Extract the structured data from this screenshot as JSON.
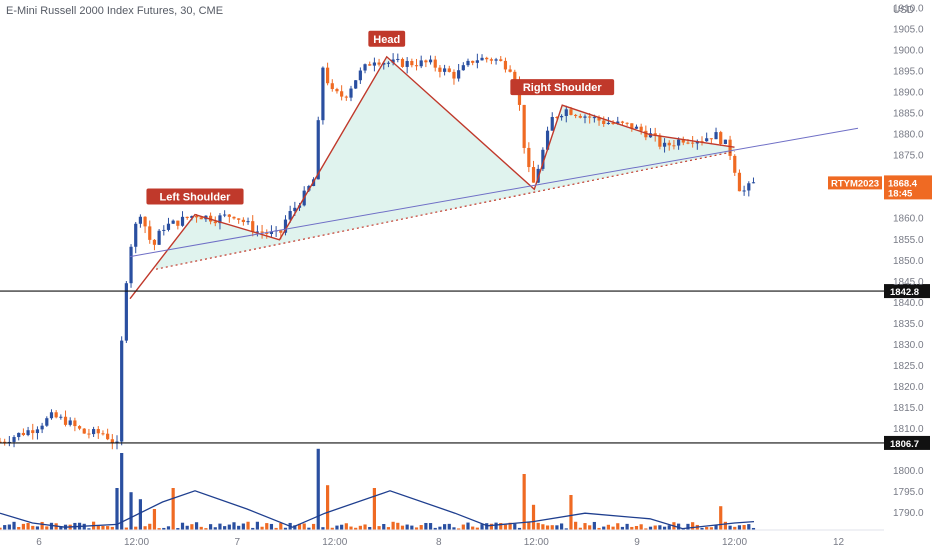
{
  "header": {
    "title": "E-Mini Russell 2000 Index Futures, 30, CME",
    "currency": "USD"
  },
  "colors": {
    "up": "#2a4fa0",
    "down": "#ef6a23",
    "pattern_line": "#c0392b",
    "neckline": "#6f6fc6",
    "fill": "#d8f0ea",
    "level_line": "#111111",
    "volume_ma": "#1f3f8f",
    "last_price_tag": "#ef6a23"
  },
  "chart_data": {
    "type": "candlestick",
    "y_axis": {
      "range": [
        1786,
        1912
      ],
      "ticks": [
        1790,
        1795,
        1800,
        1805,
        1810,
        1815,
        1820,
        1825,
        1830,
        1835,
        1840,
        1845,
        1850,
        1855,
        1860,
        1865,
        1870,
        1875,
        1880,
        1885,
        1890,
        1895,
        1900,
        1905,
        1910
      ]
    },
    "x_axis": {
      "ticks": [
        {
          "label": "6",
          "t": 0.06
        },
        {
          "label": "12:00",
          "t": 0.21
        },
        {
          "label": "7",
          "t": 0.365
        },
        {
          "label": "12:00",
          "t": 0.515
        },
        {
          "label": "8",
          "t": 0.675
        },
        {
          "label": "12:00",
          "t": 0.825
        },
        {
          "label": "9",
          "t": 0.98
        },
        {
          "label": "12:00",
          "t": 1.13
        },
        {
          "label": "12",
          "t": 1.29
        }
      ]
    },
    "candle_keypoints": [
      [
        0.0,
        1807
      ],
      [
        0.05,
        1810
      ],
      [
        0.08,
        1813
      ],
      [
        0.1,
        1812
      ],
      [
        0.13,
        1809
      ],
      [
        0.16,
        1809
      ],
      [
        0.18,
        1806
      ],
      [
        0.19,
        1840
      ],
      [
        0.2,
        1853
      ],
      [
        0.215,
        1862
      ],
      [
        0.235,
        1853
      ],
      [
        0.25,
        1858
      ],
      [
        0.27,
        1859
      ],
      [
        0.3,
        1861
      ],
      [
        0.33,
        1860
      ],
      [
        0.36,
        1861
      ],
      [
        0.395,
        1857
      ],
      [
        0.43,
        1856
      ],
      [
        0.44,
        1860
      ],
      [
        0.47,
        1866
      ],
      [
        0.485,
        1870
      ],
      [
        0.495,
        1897
      ],
      [
        0.51,
        1890
      ],
      [
        0.53,
        1889
      ],
      [
        0.55,
        1894
      ],
      [
        0.575,
        1898
      ],
      [
        0.6,
        1897
      ],
      [
        0.635,
        1897
      ],
      [
        0.66,
        1897
      ],
      [
        0.7,
        1894
      ],
      [
        0.73,
        1898
      ],
      [
        0.76,
        1898
      ],
      [
        0.785,
        1896
      ],
      [
        0.795,
        1892
      ],
      [
        0.81,
        1873
      ],
      [
        0.82,
        1868
      ],
      [
        0.835,
        1876
      ],
      [
        0.85,
        1884
      ],
      [
        0.87,
        1886
      ],
      [
        0.89,
        1885
      ],
      [
        0.93,
        1883
      ],
      [
        0.97,
        1882
      ],
      [
        1.0,
        1880
      ],
      [
        1.02,
        1877
      ],
      [
        1.05,
        1879
      ],
      [
        1.08,
        1879
      ],
      [
        1.1,
        1880
      ],
      [
        1.115,
        1878
      ],
      [
        1.125,
        1875
      ],
      [
        1.14,
        1866
      ],
      [
        1.16,
        1868.4
      ]
    ],
    "volume_bars": [
      {
        "t": 0.18,
        "v": 0.3,
        "dir": "up"
      },
      {
        "t": 0.185,
        "v": 0.55,
        "dir": "up"
      },
      {
        "t": 0.19,
        "v": 0.33,
        "dir": "up"
      },
      {
        "t": 0.2,
        "v": 0.27,
        "dir": "up"
      },
      {
        "t": 0.215,
        "v": 0.22,
        "dir": "up"
      },
      {
        "t": 0.235,
        "v": 0.15,
        "dir": "down"
      },
      {
        "t": 0.27,
        "v": 0.3,
        "dir": "down"
      },
      {
        "t": 0.49,
        "v": 0.58,
        "dir": "up"
      },
      {
        "t": 0.505,
        "v": 0.32,
        "dir": "down"
      },
      {
        "t": 0.575,
        "v": 0.3,
        "dir": "down"
      },
      {
        "t": 0.805,
        "v": 0.4,
        "dir": "down"
      },
      {
        "t": 0.82,
        "v": 0.18,
        "dir": "down"
      },
      {
        "t": 0.88,
        "v": 0.25,
        "dir": "down"
      },
      {
        "t": 1.11,
        "v": 0.17,
        "dir": "down"
      }
    ],
    "annotations": {
      "left_shoulder": {
        "label": "Left Shoulder",
        "t": 0.3,
        "price": 1861
      },
      "head": {
        "label": "Head",
        "t": 0.595,
        "price": 1898.5
      },
      "right_shoulder": {
        "label": "Right Shoulder",
        "t": 0.865,
        "price": 1887
      }
    },
    "pattern_points": [
      [
        0.2,
        1841
      ],
      [
        0.3,
        1861
      ],
      [
        0.43,
        1855
      ],
      [
        0.595,
        1898.5
      ],
      [
        0.822,
        1867
      ],
      [
        0.865,
        1887
      ],
      [
        1.0,
        1880
      ],
      [
        1.13,
        1877
      ]
    ],
    "neckline_points": [
      [
        0.2,
        1851
      ],
      [
        1.32,
        1881.5
      ]
    ],
    "dotted_neckline_points": [
      [
        0.24,
        1848
      ],
      [
        1.13,
        1876
      ]
    ],
    "horizontal_levels": [
      {
        "price": 1842.8,
        "label": "1842.8"
      },
      {
        "price": 1806.7,
        "label": "1806.7"
      }
    ],
    "last_price": {
      "price": 1868.4,
      "symbol": "RTYM2023",
      "label": "1868.4",
      "countdown": "18:45"
    }
  }
}
